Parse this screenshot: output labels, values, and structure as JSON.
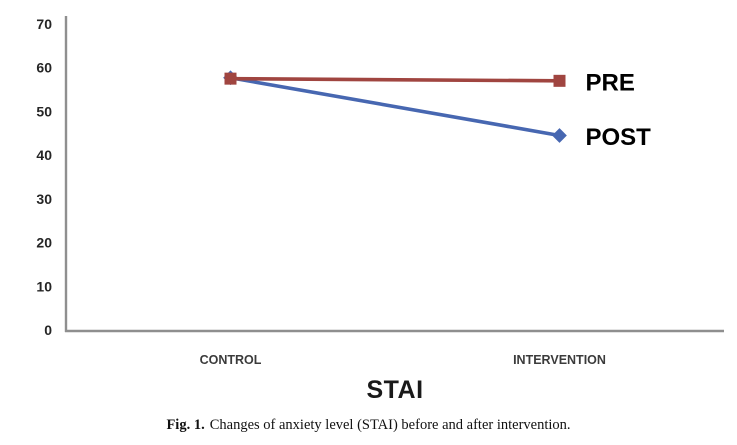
{
  "figure_caption": {
    "label": "Fig. 1.",
    "text": "Changes of anxiety level (STAI) before and after intervention."
  },
  "chart_data": {
    "type": "line",
    "title": "STAI",
    "title_position": "below-x-axis",
    "categories": [
      "CONTROL",
      "INTERVENTION"
    ],
    "series": [
      {
        "name": "PRE",
        "label": "PRE",
        "values": [
          57.5,
          57.0
        ],
        "color": "#A04540",
        "marker": "square"
      },
      {
        "name": "POST",
        "label": "POST",
        "values": [
          57.7,
          44.5
        ],
        "color": "#4767B1",
        "marker": "diamond"
      }
    ],
    "ylim": [
      0,
      70
    ],
    "yticks": [
      0,
      10,
      20,
      30,
      40,
      50,
      60,
      70
    ],
    "grid": false,
    "legend_position": "end-of-line",
    "axis_color": "#8F8F8F",
    "tick_label_color": "#262626",
    "category_label_color": "#3B3B3B",
    "series_label_color": "#000000"
  }
}
